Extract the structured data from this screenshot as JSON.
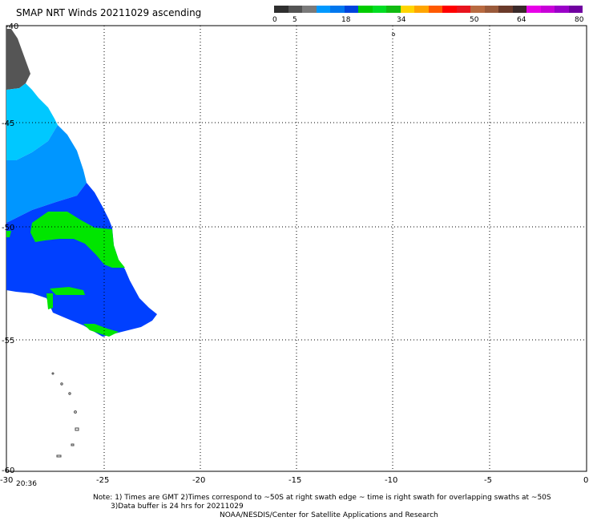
{
  "title": "SMAP NRT Winds 20211029 ascending",
  "colorbar": {
    "labels": [
      "0",
      "5",
      "18",
      "34",
      "50",
      "64",
      "80"
    ],
    "colors": [
      "#2f2f2f",
      "#545454",
      "#7a7a7a",
      "#0099ff",
      "#0077ee",
      "#0044dd",
      "#00cc00",
      "#00dd22",
      "#11bb11",
      "#ffd500",
      "#ffa500",
      "#ff5a00",
      "#ff0000",
      "#e8141e",
      "#b86a40",
      "#9a5a3a",
      "#6a3a2a",
      "#3a2a2a",
      "#e800e8",
      "#c800d8",
      "#9a00c8",
      "#7000a0"
    ]
  },
  "axes": {
    "y_labels": [
      "-40",
      "-45",
      "-50",
      "-55",
      "-60"
    ],
    "x_labels": [
      "-30",
      "-25",
      "-20",
      "-15",
      "-10",
      "-5",
      "0"
    ]
  },
  "time_label": "20:36",
  "notes": {
    "line1": "Note: 1) Times are GMT 2)Times correspond to ~50S at right swath edge ~ time is right swath for overlapping swaths at ~50S",
    "line2": "3)Data buffer is 24 hrs for 20211029",
    "line3": "NOAA/NESDIS/Center for Satellite Applications and Research"
  },
  "colors": {
    "land": "#555555",
    "wind_cyan": "#00c8ff",
    "wind_light_blue": "#0096ff",
    "wind_blue": "#0040ff",
    "wind_green": "#00e600"
  }
}
